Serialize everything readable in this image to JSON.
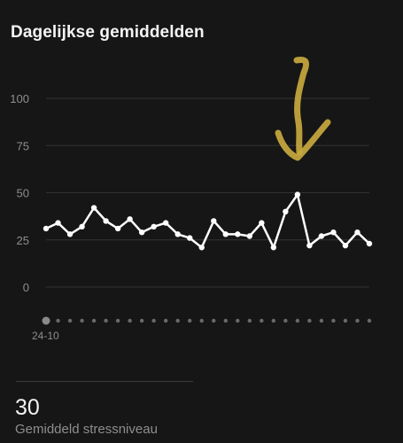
{
  "header": {
    "title": "Dagelijkse gemiddelden"
  },
  "chart_data": {
    "type": "line",
    "title": "Dagelijkse gemiddelden",
    "xlabel": "",
    "ylabel": "",
    "ylim": [
      0,
      100
    ],
    "yticks": [
      0,
      25,
      50,
      75,
      100
    ],
    "grid": true,
    "first_x_label": "24-10",
    "series": [
      {
        "values": [
          31,
          34,
          28,
          32,
          42,
          35,
          31,
          36,
          29,
          32,
          34,
          28,
          26,
          21,
          35,
          28,
          28,
          27,
          34,
          21,
          40,
          49,
          22,
          27,
          29,
          22,
          29,
          23
        ]
      }
    ],
    "colors": {
      "line": "#ffffff",
      "grid": "#333333",
      "tick_label": "#8e8e8e",
      "highlight_arrow": "#c9a93f",
      "axis_dot": "#6a6a6a",
      "axis_dot_current": "#8a8a8a"
    }
  },
  "summary": {
    "value": "30",
    "label": "Gemiddeld stressniveau"
  }
}
